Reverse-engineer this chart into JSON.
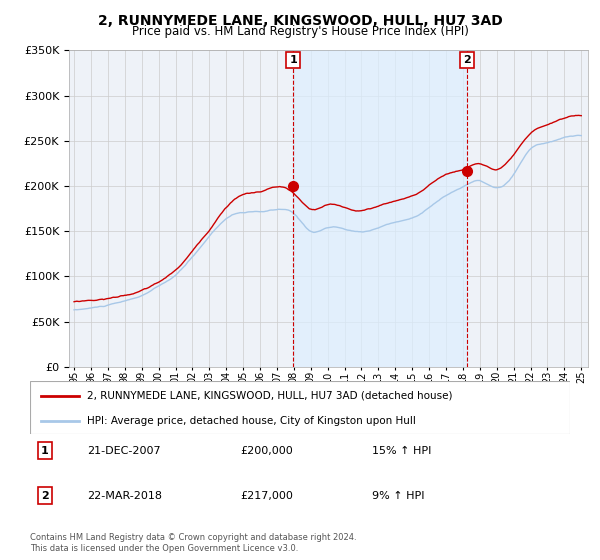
{
  "title": "2, RUNNYMEDE LANE, KINGSWOOD, HULL, HU7 3AD",
  "subtitle": "Price paid vs. HM Land Registry's House Price Index (HPI)",
  "ylim": [
    0,
    350000
  ],
  "yticks": [
    0,
    50000,
    100000,
    150000,
    200000,
    250000,
    300000,
    350000
  ],
  "legend_line1": "2, RUNNYMEDE LANE, KINGSWOOD, HULL, HU7 3AD (detached house)",
  "legend_line2": "HPI: Average price, detached house, City of Kingston upon Hull",
  "sale1_date": "21-DEC-2007",
  "sale1_price": "£200,000",
  "sale1_hpi": "15% ↑ HPI",
  "sale1_year": 2007.97,
  "sale1_value": 200000,
  "sale2_date": "22-MAR-2018",
  "sale2_price": "£217,000",
  "sale2_hpi": "9% ↑ HPI",
  "sale2_year": 2018.22,
  "sale2_value": 217000,
  "footer": "Contains HM Land Registry data © Crown copyright and database right 2024.\nThis data is licensed under the Open Government Licence v3.0.",
  "hpi_color": "#a8c8e8",
  "price_color": "#cc0000",
  "shade_color": "#ddeeff",
  "vline_color": "#cc0000",
  "bg_color": "#eef2f8",
  "grid_color": "#cccccc"
}
